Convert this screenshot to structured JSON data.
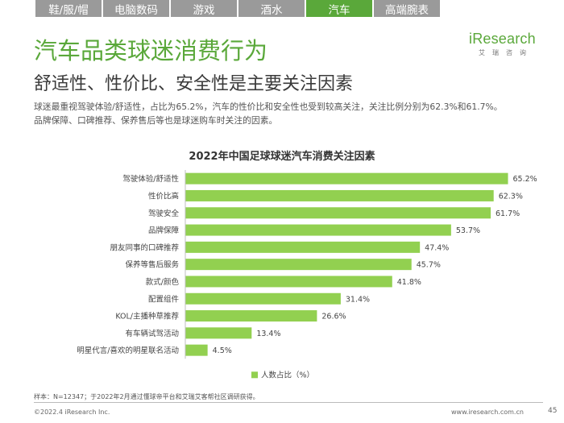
{
  "nav": {
    "tabs": [
      {
        "label": "鞋/服/帽",
        "active": false
      },
      {
        "label": "电脑数码",
        "active": false
      },
      {
        "label": "游戏",
        "active": false
      },
      {
        "label": "酒水",
        "active": false
      },
      {
        "label": "汽车",
        "active": true
      },
      {
        "label": "高端腕表",
        "active": false
      }
    ]
  },
  "brand": {
    "name": "iResearch",
    "sub": "艾瑞咨询",
    "color": "#5aa83a"
  },
  "header": {
    "title": "汽车品类球迷消费行为",
    "subtitle": "舒适性、性价比、安全性是主要关注因素"
  },
  "description": {
    "line1": "球迷最重视驾驶体验/舒适性，占比为65.2%，汽车的性价比和安全性也受到较高关注，关注比例分别为62.3%和61.7%。",
    "line2": "品牌保障、口碑推荐、保养售后等也是球迷购车时关注的因素。"
  },
  "chart_data": {
    "type": "bar",
    "orientation": "horizontal",
    "title": "2022年中国足球球迷汽车消费关注因素",
    "categories": [
      "驾驶体验/舒适性",
      "性价比高",
      "驾驶安全",
      "品牌保障",
      "朋友同事的口碑推荐",
      "保养等售后服务",
      "款式/颜色",
      "配置组件",
      "KOL/主播种草推荐",
      "有车辆试驾活动",
      "明星代言/喜欢的明星联名活动"
    ],
    "values": [
      65.2,
      62.3,
      61.7,
      53.7,
      47.4,
      45.7,
      41.8,
      31.4,
      26.6,
      13.4,
      4.5
    ],
    "value_labels": [
      "65.2%",
      "62.3%",
      "61.7%",
      "53.7%",
      "47.4%",
      "45.7%",
      "41.8%",
      "31.4%",
      "26.6%",
      "13.4%",
      "4.5%"
    ],
    "series": [
      {
        "name": "人数占比（%）",
        "color": "#92d050"
      }
    ],
    "xlim": [
      0,
      70
    ],
    "grid": false,
    "legend": "bottom"
  },
  "footer": {
    "note": "样本：N=12347；于2022年2月通过懂球帝平台和艾瑞艾客帮社区调研获得。",
    "copyright": "©2022.4 iResearch Inc.",
    "website": "www.iresearch.com.cn",
    "page": "45"
  }
}
